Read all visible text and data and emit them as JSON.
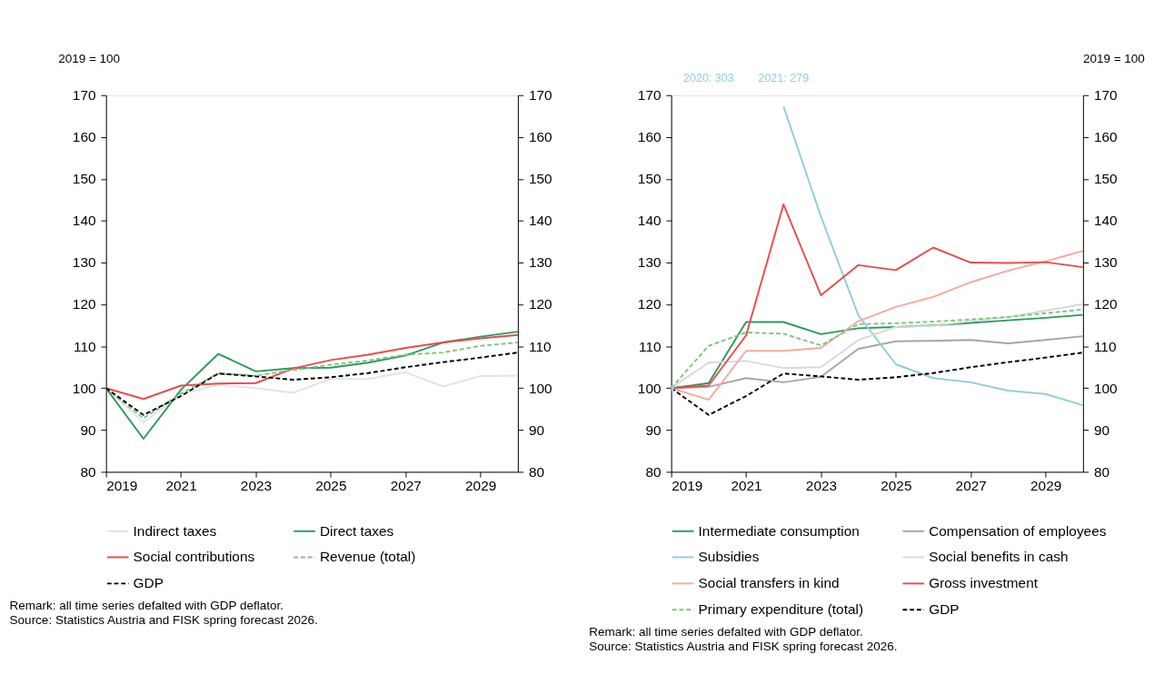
{
  "chart_data": [
    {
      "type": "line",
      "ylabel": "2019 = 100",
      "x": [
        2019,
        2020,
        2021,
        2022,
        2023,
        2024,
        2025,
        2026,
        2027,
        2028,
        2029,
        2030
      ],
      "xlim": [
        2019,
        2030
      ],
      "xticks": [
        2019,
        2021,
        2023,
        2025,
        2027,
        2029
      ],
      "ylim": [
        80,
        170
      ],
      "yticks": [
        80,
        90,
        100,
        110,
        120,
        130,
        140,
        150,
        160,
        170
      ],
      "y2lim": [
        80,
        170
      ],
      "y2ticks": [
        80,
        90,
        100,
        110,
        120,
        130,
        140,
        150,
        160,
        170
      ],
      "grid": false,
      "legend": "bottom",
      "marker": "none",
      "series": [
        {
          "name": "Indirect taxes",
          "color": "#e3e3e3",
          "line_style": "solid",
          "values": [
            100,
            91.8,
            98.5,
            100.8,
            100,
            98.9,
            102.2,
            102.2,
            103.8,
            100.4,
            102.9,
            103
          ]
        },
        {
          "name": "Direct taxes",
          "color": "#2a9a5b",
          "line_style": "solid",
          "values": [
            100,
            87.9,
            99.6,
            108.2,
            104,
            104.8,
            104.9,
            106.1,
            107.8,
            110.9,
            112.3,
            113.5
          ]
        },
        {
          "name": "Social contributions",
          "color": "#e84c4c",
          "line_style": "solid",
          "values": [
            100,
            97.4,
            100.6,
            101.1,
            101.2,
            104.7,
            106.7,
            108,
            109.6,
            110.9,
            111.9,
            112.7
          ]
        },
        {
          "name": "Revenue (total)",
          "color": "#7fc47f",
          "line_style": "dashed",
          "values": [
            100,
            92.8,
            98.7,
            103.5,
            103,
            104.3,
            105.6,
            106.6,
            108,
            108.5,
            110.1,
            110.9
          ]
        },
        {
          "name": "GDP",
          "color": "#000000",
          "line_style": "dashed",
          "values": [
            100,
            93.6,
            98.1,
            103.5,
            102.8,
            102,
            102.6,
            103.6,
            105,
            106.2,
            107.3,
            108.5
          ]
        }
      ],
      "annotations": [
        "Remark: all time series defalted with GDP deflator.",
        "Source: Statistics Austria and FISK spring forecast 2026."
      ]
    },
    {
      "type": "line",
      "y2label": "2019 = 100",
      "x": [
        2019,
        2020,
        2021,
        2022,
        2023,
        2024,
        2025,
        2026,
        2027,
        2028,
        2029,
        2030
      ],
      "xlim": [
        2019,
        2030
      ],
      "xticks": [
        2019,
        2021,
        2023,
        2025,
        2027,
        2029
      ],
      "ylim": [
        80,
        170
      ],
      "yticks": [
        80,
        90,
        100,
        110,
        120,
        130,
        140,
        150,
        160,
        170
      ],
      "y2lim": [
        80,
        170
      ],
      "y2ticks": [
        80,
        90,
        100,
        110,
        120,
        130,
        140,
        150,
        160,
        170
      ],
      "grid": false,
      "legend": "bottom",
      "marker": "none",
      "series": [
        {
          "name": "Intermediate consumption",
          "color": "#2a9a5b",
          "line_style": "solid",
          "values": [
            100,
            101.2,
            115.8,
            115.8,
            112.9,
            114.3,
            114.6,
            115,
            115.6,
            116.2,
            116.8,
            117.5
          ]
        },
        {
          "name": "Compensation of employees",
          "color": "#a6a6a6",
          "line_style": "solid",
          "values": [
            100,
            100.3,
            102.4,
            101.4,
            102.7,
            109.4,
            111.2,
            111.3,
            111.5,
            110.7,
            111.5,
            112.4
          ]
        },
        {
          "name": "Subsidies",
          "color": "#92cddc",
          "line_style": "solid",
          "values": [
            100,
            null,
            null,
            167.3,
            141,
            117.4,
            105.7,
            102.4,
            101.4,
            99.4,
            98.6,
            95.9
          ]
        },
        {
          "name": "Social benefits in cash",
          "color": "#d9d9d9",
          "line_style": "solid",
          "values": [
            100,
            106.1,
            106.5,
            104.8,
            105,
            111.5,
            114.6,
            114.9,
            116,
            117,
            118.5,
            120.1
          ]
        },
        {
          "name": "Social transfers in kind",
          "color": "#f8a89c",
          "line_style": "solid",
          "values": [
            100,
            97.2,
            108.9,
            108.9,
            109.6,
            116,
            119.4,
            121.8,
            125.3,
            128.1,
            130.3,
            132.8
          ]
        },
        {
          "name": "Gross investment",
          "color": "#e84c4c",
          "line_style": "solid",
          "values": [
            100,
            100.6,
            112.6,
            143.9,
            122.2,
            129.4,
            128.2,
            133.6,
            130,
            129.9,
            130.1,
            128.9
          ]
        },
        {
          "name": "Primary expenditure (total)",
          "color": "#7fc47f",
          "line_style": "dashed",
          "values": [
            100,
            110.1,
            113.3,
            113,
            110.2,
            115.3,
            115.5,
            115.9,
            116.4,
            117,
            117.9,
            118.8
          ]
        },
        {
          "name": "GDP",
          "color": "#000000",
          "line_style": "dashed",
          "values": [
            100,
            93.6,
            98.1,
            103.5,
            102.8,
            102,
            102.6,
            103.6,
            105,
            106.2,
            107.3,
            108.5
          ]
        }
      ],
      "annotations": [
        "2020: 303",
        "2021: 279",
        "Remark: all time series defalted with GDP deflator.",
        "Source: Statistics Austria and FISK spring forecast 2026."
      ]
    }
  ]
}
